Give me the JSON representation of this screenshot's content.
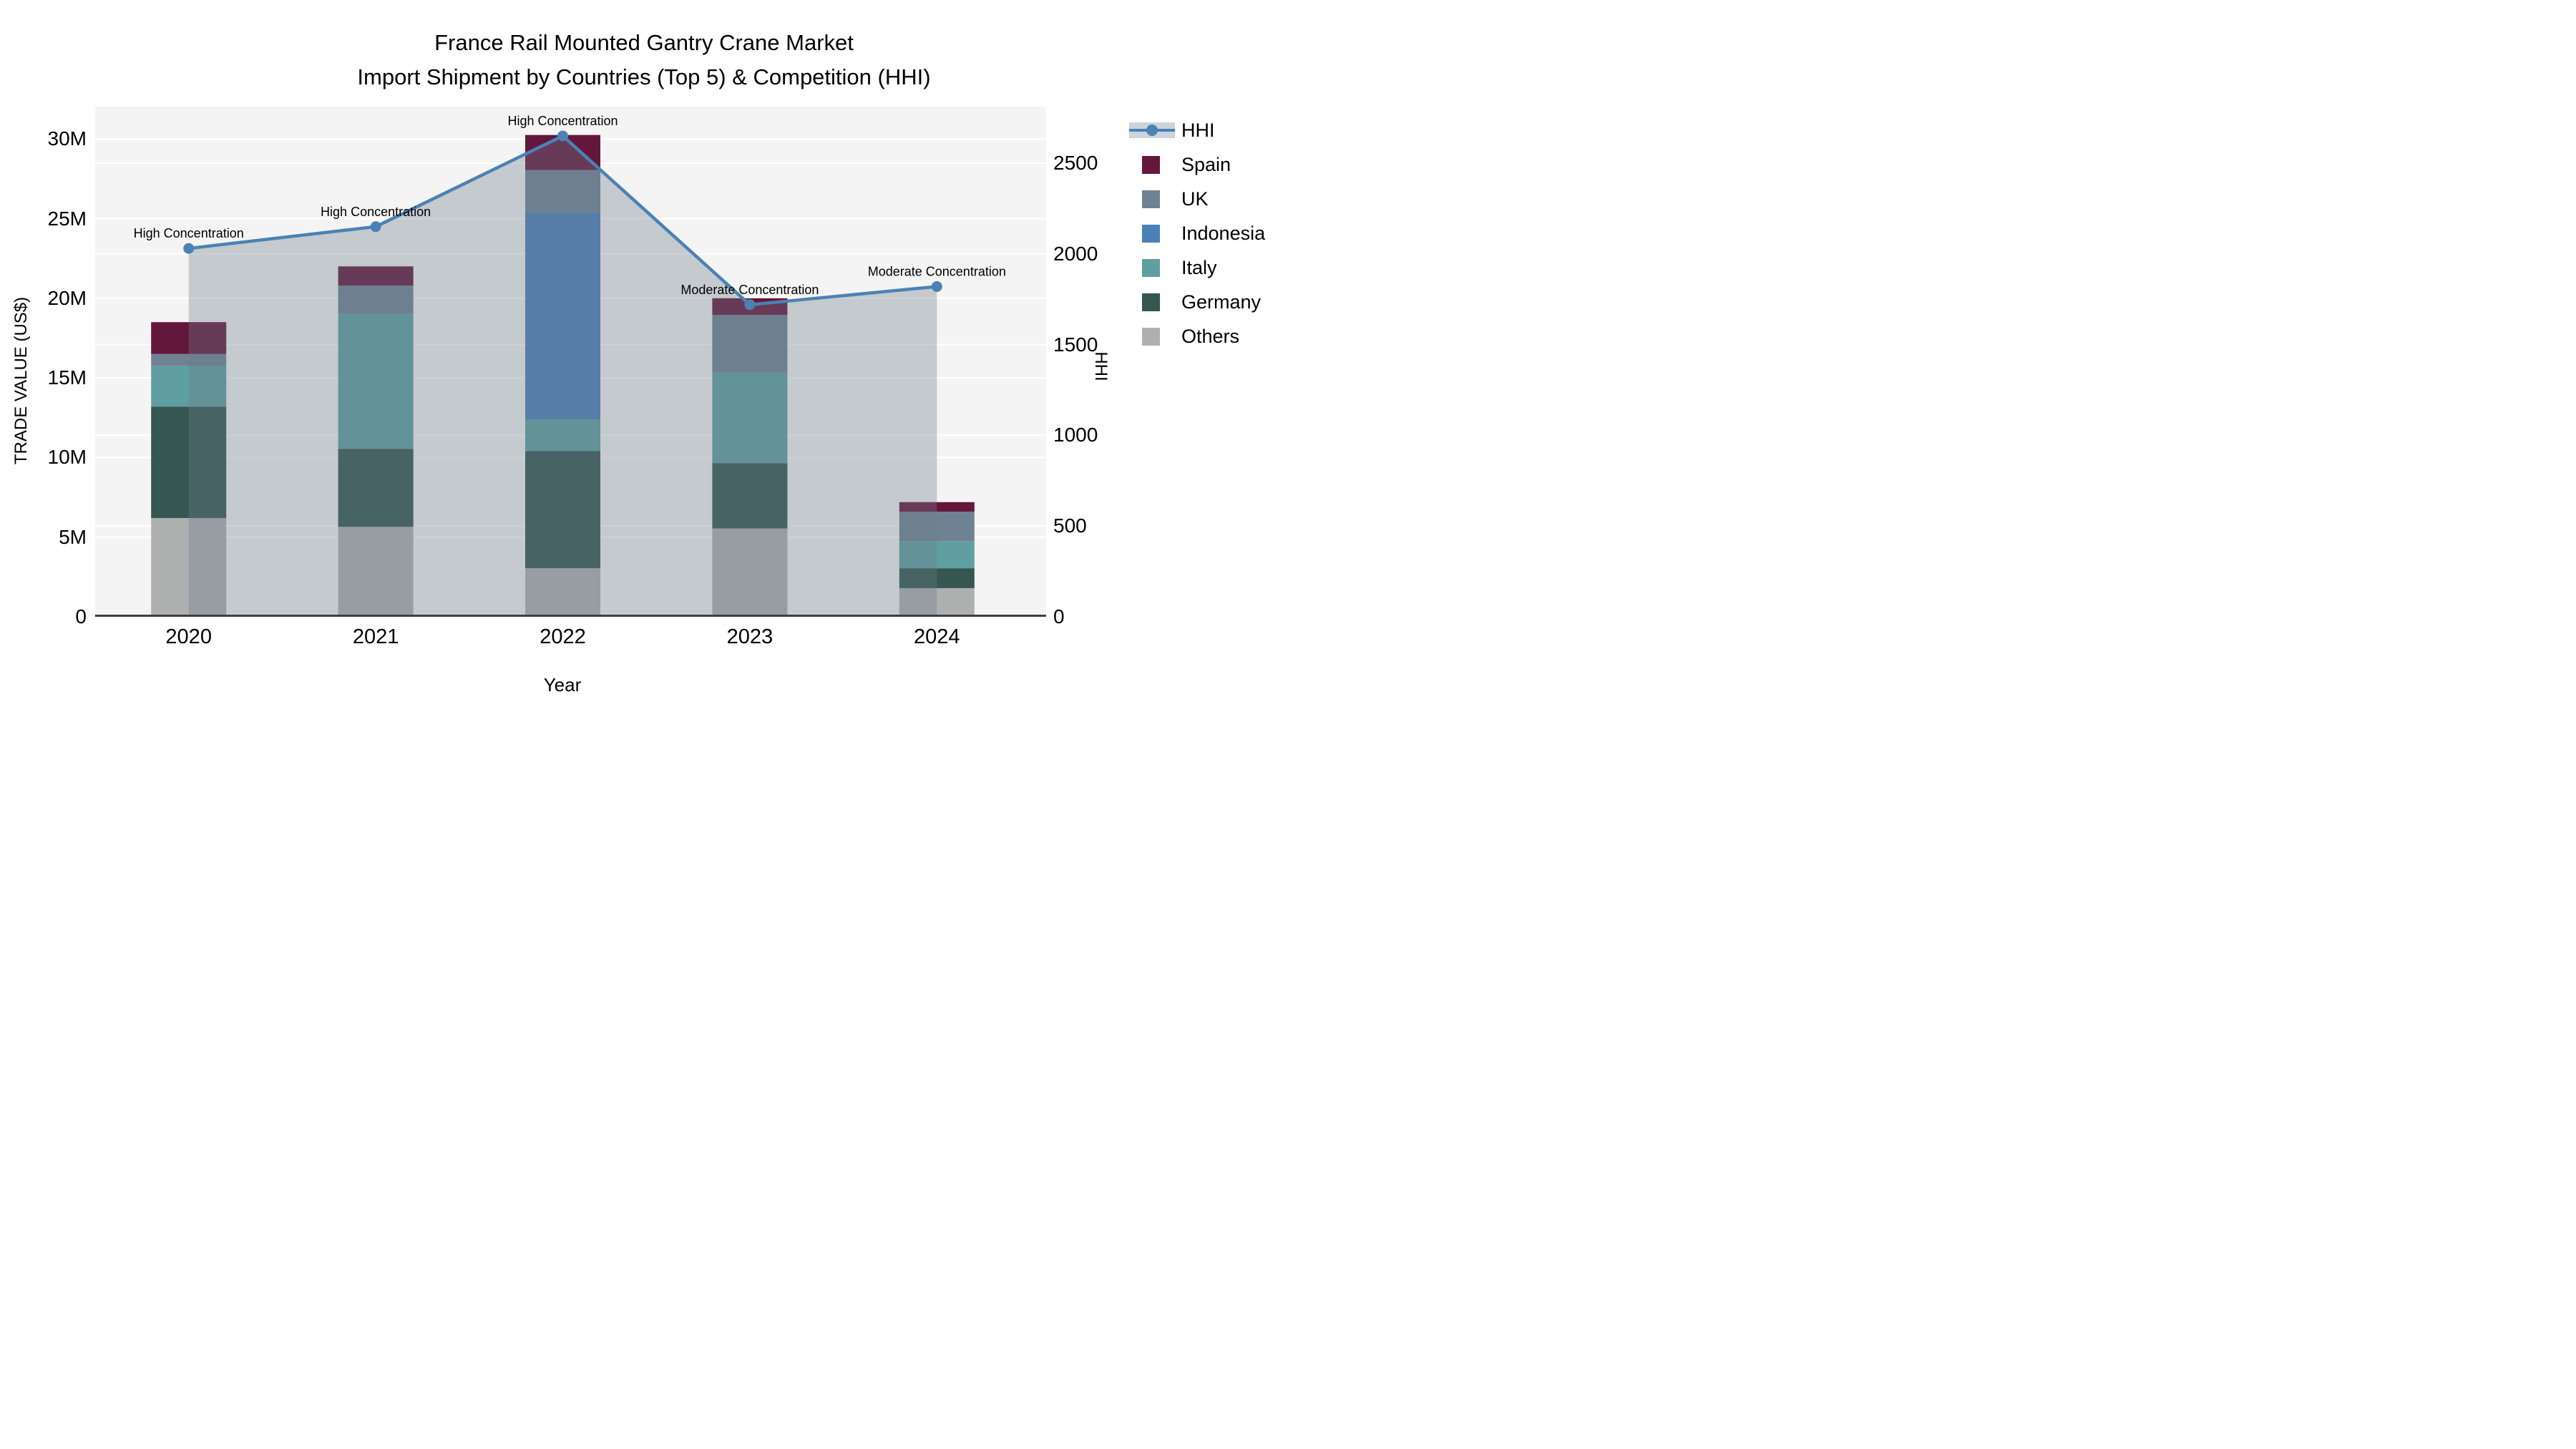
{
  "title": {
    "line1": "France Rail Mounted Gantry Crane Market",
    "line2": "Import Shipment by Countries (Top 5) & Competition (HHI)"
  },
  "axes": {
    "y_left": {
      "title": "TRADE VALUE (US$)",
      "ticks": [
        {
          "value": 0,
          "label": "0"
        },
        {
          "value": 5,
          "label": "5M"
        },
        {
          "value": 10,
          "label": "10M"
        },
        {
          "value": 15,
          "label": "15M"
        },
        {
          "value": 20,
          "label": "20M"
        },
        {
          "value": 25,
          "label": "25M"
        },
        {
          "value": 30,
          "label": "30M"
        }
      ]
    },
    "y_right": {
      "title": "HHI",
      "ticks": [
        {
          "value": 0,
          "label": "0"
        },
        {
          "value": 500,
          "label": "500"
        },
        {
          "value": 1000,
          "label": "1000"
        },
        {
          "value": 1500,
          "label": "1500"
        },
        {
          "value": 2000,
          "label": "2000"
        },
        {
          "value": 2500,
          "label": "2500"
        }
      ]
    },
    "x": {
      "title": "Year",
      "categories": [
        "2020",
        "2021",
        "2022",
        "2023",
        "2024"
      ]
    }
  },
  "legend": [
    {
      "name": "HHI",
      "type": "line",
      "color": "#4a82b4"
    },
    {
      "name": "Spain",
      "type": "swatch",
      "color": "#64173c"
    },
    {
      "name": "UK",
      "type": "swatch",
      "color": "#6f8294"
    },
    {
      "name": "Indonesia",
      "type": "swatch",
      "color": "#4a80b8"
    },
    {
      "name": "Italy",
      "type": "swatch",
      "color": "#5f9fa1"
    },
    {
      "name": "Germany",
      "type": "swatch",
      "color": "#355651"
    },
    {
      "name": "Others",
      "type": "swatch",
      "color": "#aeb0b0"
    }
  ],
  "chart_data": {
    "type": "bar+line",
    "title": "France Rail Mounted Gantry Crane Market — Import Shipment by Countries (Top 5) & Competition (HHI)",
    "categories": [
      "2020",
      "2021",
      "2022",
      "2023",
      "2024"
    ],
    "value_unit": "Million US$",
    "stack_order_bottom_to_top": [
      "Others",
      "Germany",
      "Italy",
      "Indonesia",
      "UK",
      "Spain"
    ],
    "series": [
      {
        "name": "Others",
        "color": "#aeb0b0",
        "values": [
          6.2,
          5.65,
          3.05,
          5.55,
          1.8
        ]
      },
      {
        "name": "Germany",
        "color": "#355651",
        "values": [
          7.0,
          4.9,
          7.35,
          4.1,
          1.25
        ]
      },
      {
        "name": "Italy",
        "color": "#5f9fa1",
        "values": [
          2.55,
          8.5,
          2.0,
          5.7,
          1.7
        ]
      },
      {
        "name": "Indonesia",
        "color": "#4a80b8",
        "values": [
          0,
          0,
          13.0,
          0,
          0
        ]
      },
      {
        "name": "UK",
        "color": "#6f8294",
        "values": [
          0.75,
          1.75,
          2.65,
          3.6,
          1.85
        ]
      },
      {
        "name": "Spain",
        "color": "#64173c",
        "values": [
          2.0,
          1.2,
          2.2,
          1.05,
          0.6
        ]
      }
    ],
    "bar_totals": [
      18.5,
      22.0,
      30.25,
      20.0,
      7.2
    ],
    "line_series": {
      "name": "HHI",
      "axis": "right",
      "color": "#4a82b4",
      "values": [
        2030,
        2150,
        2650,
        1720,
        1820
      ],
      "area_fill": "rgba(108,122,137,0.35)"
    },
    "annotations": [
      {
        "x": "2020",
        "text": "High Concentration"
      },
      {
        "x": "2021",
        "text": "High Concentration"
      },
      {
        "x": "2022",
        "text": "High Concentration"
      },
      {
        "x": "2023",
        "text": "Moderate Concentration"
      },
      {
        "x": "2024",
        "text": "Moderate Concentration"
      }
    ],
    "ylim_left": [
      0,
      32
    ],
    "ylim_right": [
      0,
      2810
    ],
    "grid": true,
    "legend_position": "right",
    "plot_bg": "#f4f4f4",
    "grid_color": "#ffffff",
    "axis_line_color": "#3f3f3f"
  }
}
